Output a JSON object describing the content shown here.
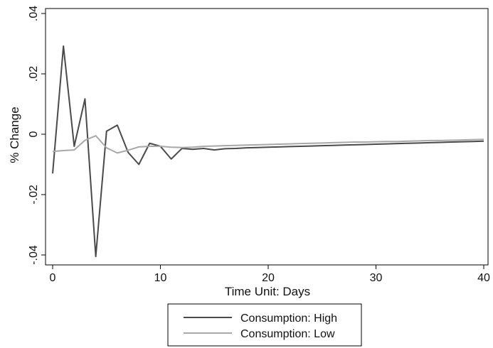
{
  "chart_data": {
    "type": "line",
    "title": "",
    "xlabel": "Time Unit: Days",
    "ylabel": "% Change",
    "xlim": [
      0,
      40
    ],
    "ylim": [
      -0.04,
      0.04
    ],
    "xticks": [
      0,
      10,
      20,
      30,
      40
    ],
    "xtick_labels": [
      "0",
      "10",
      "20",
      "30",
      "40"
    ],
    "yticks": [
      -0.04,
      -0.02,
      0,
      0.02,
      0.04
    ],
    "ytick_labels": [
      "-.04",
      "-.02",
      "0",
      ".02",
      ".04"
    ],
    "grid": false,
    "legend_position": "bottom-center",
    "x": [
      0,
      1,
      2,
      3,
      4,
      5,
      6,
      7,
      8,
      9,
      10,
      11,
      12,
      13,
      14,
      15,
      16,
      17,
      18,
      19,
      20,
      21,
      22,
      23,
      24,
      25,
      26,
      27,
      28,
      29,
      30,
      31,
      32,
      33,
      34,
      35,
      36,
      37,
      38,
      39,
      40
    ],
    "series": [
      {
        "name": "Consumption: High",
        "color": "#4a4a4a",
        "values": [
          -0.013,
          0.0292,
          -0.004,
          0.0117,
          -0.0405,
          0.001,
          0.003,
          -0.006,
          -0.01,
          -0.003,
          -0.004,
          -0.0082,
          -0.0047,
          -0.005,
          -0.0047,
          -0.0052,
          -0.0048,
          -0.0047,
          -0.0045,
          -0.0044,
          -0.0043,
          -0.0042,
          -0.0041,
          -0.004,
          -0.0039,
          -0.0038,
          -0.0037,
          -0.0036,
          -0.0035,
          -0.0034,
          -0.0033,
          -0.0032,
          -0.0031,
          -0.003,
          -0.0029,
          -0.0028,
          -0.0027,
          -0.0026,
          -0.0025,
          -0.0024,
          -0.0023
        ]
      },
      {
        "name": "Consumption: Low",
        "color": "#a8a8a8",
        "values": [
          -0.0057,
          -0.0054,
          -0.0052,
          -0.002,
          -0.0005,
          -0.0045,
          -0.0062,
          -0.0053,
          -0.0042,
          -0.004,
          -0.004,
          -0.0043,
          -0.0044,
          -0.0043,
          -0.004,
          -0.0039,
          -0.0038,
          -0.0037,
          -0.0036,
          -0.0035,
          -0.0034,
          -0.0033,
          -0.0032,
          -0.0031,
          -0.003,
          -0.0029,
          -0.0028,
          -0.0027,
          -0.0026,
          -0.0026,
          -0.0025,
          -0.0024,
          -0.0024,
          -0.0023,
          -0.0022,
          -0.0021,
          -0.0021,
          -0.002,
          -0.0019,
          -0.0018,
          -0.0017
        ]
      }
    ]
  }
}
